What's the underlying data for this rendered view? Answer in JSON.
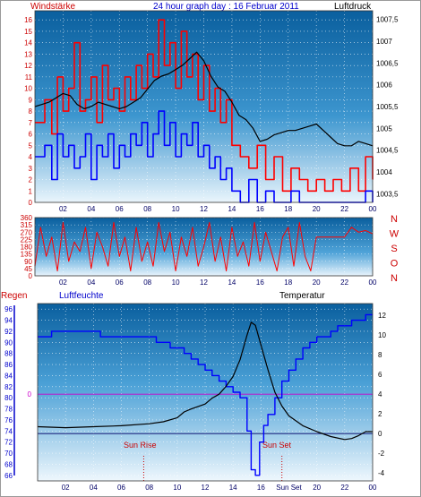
{
  "header": {
    "left_title": "Windstärke",
    "center_title": "24 hour graph day : 16 Februar 2011",
    "right_title": "Luftdruck"
  },
  "panel3_labels": {
    "regen": "Regen",
    "humidity": "Luftfeuchte",
    "temperature": "Temperatur",
    "sunrise": "Sun Rise",
    "sunset": "Sun Set"
  },
  "colors": {
    "wind": "#ff0000",
    "wind_avg": "#0000ff",
    "pressure": "#000000",
    "direction": "#ff0000",
    "humidity": "#0000ff",
    "temperature": "#000000",
    "zero_line": "#cc00cc",
    "title_red": "#cc0000",
    "title_blue": "#0000cc",
    "sun_marker": "#cc0000",
    "compass": "#cc0000"
  },
  "chart_data": [
    {
      "type": "line",
      "x_ticks": [
        "02",
        "04",
        "06",
        "08",
        "10",
        "12",
        "14",
        "16",
        "18",
        "20",
        "22",
        "00"
      ],
      "y_left_ticks": [
        "0",
        "1",
        "2",
        "3",
        "4",
        "5",
        "6",
        "7",
        "8",
        "9",
        "10",
        "11",
        "12",
        "13",
        "14",
        "15",
        "16"
      ],
      "y_left_range": [
        0,
        16.8
      ],
      "y_right_ticks": [
        "1003,5",
        "1004",
        "1004,5",
        "1005",
        "1005,5",
        "1006",
        "1006,5",
        "1007",
        "1007,5"
      ],
      "y_right_range": [
        1003.3,
        1007.7
      ],
      "series": [
        {
          "axis": "left",
          "x": [
            0,
            0.7,
            1.2,
            1.6,
            2.0,
            2.4,
            2.8,
            3.2,
            3.6,
            4.0,
            4.4,
            4.8,
            5.2,
            5.6,
            6.0,
            6.4,
            6.8,
            7.2,
            7.6,
            8.0,
            8.4,
            8.8,
            9.2,
            9.6,
            10.0,
            10.4,
            10.8,
            11.2,
            11.6,
            12.0,
            12.4,
            12.8,
            13.2,
            13.6,
            14.0,
            14.6,
            15.2,
            15.8,
            16.4,
            17.0,
            17.6,
            18.2,
            18.8,
            19.4,
            20.0,
            20.6,
            21.2,
            21.8,
            22.4,
            23.0,
            23.5,
            24.0
          ],
          "values": [
            7,
            9,
            6,
            11,
            8,
            10,
            14,
            8,
            9,
            11,
            7,
            12,
            9,
            10,
            8,
            11,
            9,
            12,
            10,
            13,
            11,
            16,
            12,
            14,
            10,
            15,
            11,
            13,
            9,
            12,
            8,
            10,
            7,
            9,
            5,
            4,
            3,
            5,
            2,
            4,
            1,
            3,
            2,
            1,
            2,
            1,
            2,
            1,
            3,
            1,
            4,
            2
          ]
        },
        {
          "axis": "left",
          "x": [
            0,
            0.7,
            1.2,
            1.6,
            2.0,
            2.4,
            2.8,
            3.2,
            3.6,
            4.0,
            4.4,
            4.8,
            5.2,
            5.6,
            6.0,
            6.4,
            6.8,
            7.2,
            7.6,
            8.0,
            8.4,
            8.8,
            9.2,
            9.6,
            10.0,
            10.4,
            10.8,
            11.2,
            11.6,
            12.0,
            12.4,
            12.8,
            13.2,
            13.6,
            14.0,
            14.6,
            15.2,
            15.8,
            16.4,
            17.0,
            17.6,
            18.2,
            18.8,
            19.4,
            20.0,
            20.6,
            21.2,
            21.8,
            22.4,
            23.0,
            23.5,
            24.0
          ],
          "values": [
            4,
            5,
            2,
            6,
            4,
            5,
            3,
            4,
            6,
            2,
            5,
            4,
            6,
            3,
            5,
            4,
            6,
            5,
            7,
            4,
            6,
            8,
            5,
            7,
            4,
            6,
            5,
            7,
            4,
            5,
            3,
            4,
            2,
            3,
            1,
            0,
            2,
            0,
            1,
            0,
            0,
            1,
            0,
            0,
            0,
            0,
            0,
            0,
            0,
            0,
            1,
            0
          ]
        },
        {
          "axis": "right",
          "x": [
            0,
            0.5,
            1.0,
            1.5,
            2.0,
            2.5,
            3.0,
            3.5,
            4.0,
            4.5,
            5.0,
            5.5,
            6.0,
            6.5,
            7.0,
            7.5,
            8.0,
            8.5,
            9.0,
            9.5,
            10.0,
            10.5,
            11.0,
            11.5,
            12.0,
            12.5,
            13.0,
            13.5,
            14.0,
            14.5,
            15.0,
            15.5,
            16.0,
            16.5,
            17.0,
            17.5,
            18.0,
            18.5,
            19.0,
            19.5,
            20.0,
            20.5,
            21.0,
            21.5,
            22.0,
            22.5,
            23.0,
            23.5,
            24.0
          ],
          "values": [
            1005.5,
            1005.55,
            1005.6,
            1005.7,
            1005.8,
            1005.75,
            1005.55,
            1005.45,
            1005.5,
            1005.6,
            1005.55,
            1005.5,
            1005.45,
            1005.5,
            1005.6,
            1005.7,
            1005.9,
            1006.1,
            1006.2,
            1006.25,
            1006.35,
            1006.45,
            1006.6,
            1006.75,
            1006.55,
            1006.2,
            1005.95,
            1005.85,
            1005.6,
            1005.3,
            1005.2,
            1005.0,
            1004.7,
            1004.75,
            1004.85,
            1004.9,
            1004.95,
            1004.95,
            1005.0,
            1005.05,
            1005.1,
            1004.95,
            1004.8,
            1004.65,
            1004.6,
            1004.6,
            1004.7,
            1004.65,
            1004.6
          ]
        }
      ]
    },
    {
      "type": "line",
      "x_ticks": [
        "02",
        "04",
        "06",
        "08",
        "10",
        "12",
        "14",
        "16",
        "18",
        "20",
        "22",
        "00"
      ],
      "y_ticks": [
        "0",
        "45",
        "90",
        "135",
        "180",
        "225",
        "270",
        "315",
        "360"
      ],
      "y_range": [
        0,
        360
      ],
      "compass_labels": [
        "N",
        "W",
        "S",
        "O",
        "N"
      ],
      "series": [
        {
          "x": [
            0,
            0.4,
            0.8,
            1.2,
            1.6,
            2.0,
            2.4,
            2.8,
            3.2,
            3.6,
            4.0,
            4.4,
            4.8,
            5.2,
            5.6,
            6.0,
            6.4,
            6.8,
            7.2,
            7.6,
            8.0,
            8.4,
            8.8,
            9.2,
            9.6,
            10.0,
            10.4,
            10.8,
            11.2,
            11.6,
            12.0,
            12.4,
            12.8,
            13.2,
            13.6,
            14.0,
            14.4,
            14.8,
            15.2,
            15.6,
            16.0,
            16.4,
            16.8,
            17.2,
            17.6,
            18.0,
            18.4,
            18.8,
            19.2,
            19.6,
            20.0,
            21.0,
            22.0,
            22.5,
            23.0,
            23.5,
            24.0
          ],
          "values": [
            60,
            300,
            120,
            240,
            30,
            330,
            90,
            210,
            150,
            300,
            45,
            270,
            180,
            60,
            330,
            120,
            240,
            30,
            300,
            90,
            210,
            60,
            330,
            150,
            270,
            30,
            240,
            120,
            300,
            60,
            180,
            330,
            90,
            240,
            30,
            300,
            120,
            210,
            60,
            330,
            90,
            270,
            150,
            30,
            240,
            300,
            60,
            330,
            120,
            30,
            240,
            240,
            240,
            300,
            270,
            280,
            260
          ]
        }
      ]
    },
    {
      "type": "line",
      "x_ticks": [
        "02",
        "04",
        "06",
        "08",
        "10",
        "12",
        "14",
        "16",
        "Sun Set",
        "20",
        "22",
        "00"
      ],
      "y_left_ticks": [
        "66",
        "68",
        "70",
        "72",
        "74",
        "76",
        "78",
        "80",
        "82",
        "84",
        "86",
        "88",
        "90",
        "92",
        "94",
        "96"
      ],
      "y_left_range": [
        65,
        97
      ],
      "y_right_ticks": [
        "-4",
        "-2",
        "0",
        "2",
        "4",
        "6",
        "8",
        "10",
        "12"
      ],
      "y_right_range": [
        -4.8,
        13.2
      ],
      "rain_axis_label": "0",
      "series": [
        {
          "axis": "left",
          "x": [
            0,
            1.0,
            1.0,
            4.5,
            4.5,
            8.0,
            8.5,
            9.5,
            10.5,
            11.0,
            11.5,
            12.0,
            12.5,
            13.0,
            13.5,
            14.0,
            14.5,
            15.0,
            15.3,
            15.6,
            15.9,
            16.2,
            16.5,
            17.0,
            17.5,
            18.0,
            18.5,
            19.0,
            19.5,
            20.0,
            20.5,
            21.0,
            21.5,
            22.0,
            22.5,
            23.0,
            23.5,
            24.0
          ],
          "values": [
            91,
            91,
            92,
            92,
            91,
            91,
            90,
            89,
            88,
            87,
            86,
            85,
            84,
            83,
            82,
            81,
            80,
            74,
            67,
            66,
            72,
            75,
            77,
            80,
            83,
            85,
            87,
            89,
            90,
            91,
            91,
            92,
            93,
            93,
            94,
            94,
            95,
            95
          ]
        },
        {
          "axis": "right",
          "x": [
            0,
            2.0,
            4.0,
            6.0,
            8.0,
            9.0,
            10.0,
            10.5,
            11.0,
            12.0,
            12.5,
            13.0,
            13.5,
            14.0,
            14.5,
            15.0,
            15.3,
            15.6,
            16.0,
            16.5,
            17.0,
            17.5,
            18.0,
            19.0,
            20.0,
            21.0,
            22.0,
            22.5,
            23.0,
            23.5,
            24.0
          ],
          "values": [
            0.7,
            0.6,
            0.7,
            0.8,
            1.0,
            1.2,
            1.6,
            2.2,
            2.5,
            3.0,
            3.6,
            4.0,
            4.8,
            5.8,
            7.5,
            10.0,
            11.3,
            11.0,
            9.0,
            6.5,
            4.2,
            2.8,
            1.8,
            0.8,
            0.2,
            -0.3,
            -0.6,
            -0.5,
            -0.2,
            0.2,
            0.2
          ]
        }
      ],
      "sun_rise_hour": 7.6,
      "sun_set_hour": 17.5
    }
  ]
}
